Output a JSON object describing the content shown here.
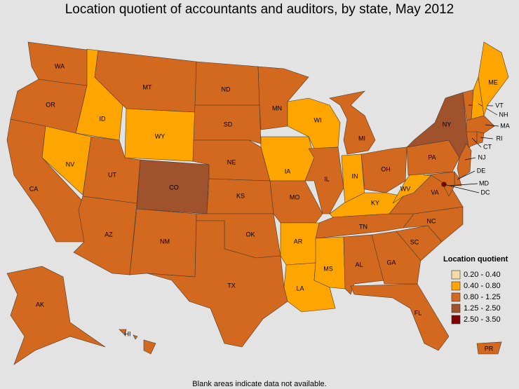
{
  "title": "Location quotient of accountants and auditors, by state, May 2012",
  "footnote": "Blank areas indicate data not available.",
  "legend": {
    "title": "Location quotient",
    "items": [
      {
        "label": "0.20 - 0.40",
        "color": "#f5d9a8"
      },
      {
        "label": "0.40 - 0.80",
        "color": "#ffa500"
      },
      {
        "label": "0.80 - 1.25",
        "color": "#d2691e"
      },
      {
        "label": "1.25 - 2.50",
        "color": "#a0522d"
      },
      {
        "label": "2.50 - 3.50",
        "color": "#800000"
      }
    ]
  },
  "states": [
    {
      "label": "WA",
      "color": "#d2691e"
    },
    {
      "label": "OR",
      "color": "#d2691e"
    },
    {
      "label": "CA",
      "color": "#d2691e"
    },
    {
      "label": "NV",
      "color": "#ffa500"
    },
    {
      "label": "ID",
      "color": "#ffa500"
    },
    {
      "label": "MT",
      "color": "#d2691e"
    },
    {
      "label": "WY",
      "color": "#ffa500"
    },
    {
      "label": "UT",
      "color": "#d2691e"
    },
    {
      "label": "AZ",
      "color": "#d2691e"
    },
    {
      "label": "CO",
      "color": "#a0522d"
    },
    {
      "label": "NM",
      "color": "#d2691e"
    },
    {
      "label": "ND",
      "color": "#d2691e"
    },
    {
      "label": "SD",
      "color": "#d2691e"
    },
    {
      "label": "NE",
      "color": "#d2691e"
    },
    {
      "label": "KS",
      "color": "#d2691e"
    },
    {
      "label": "OK",
      "color": "#d2691e"
    },
    {
      "label": "TX",
      "color": "#d2691e"
    },
    {
      "label": "MN",
      "color": "#d2691e"
    },
    {
      "label": "IA",
      "color": "#ffa500"
    },
    {
      "label": "MO",
      "color": "#d2691e"
    },
    {
      "label": "AR",
      "color": "#ffa500"
    },
    {
      "label": "LA",
      "color": "#ffa500"
    },
    {
      "label": "WI",
      "color": "#ffa500"
    },
    {
      "label": "IL",
      "color": "#d2691e"
    },
    {
      "label": "MI",
      "color": "#d2691e"
    },
    {
      "label": "IN",
      "color": "#ffa500"
    },
    {
      "label": "OH",
      "color": "#d2691e"
    },
    {
      "label": "KY",
      "color": "#ffa500"
    },
    {
      "label": "TN",
      "color": "#d2691e"
    },
    {
      "label": "MS",
      "color": "#ffa500"
    },
    {
      "label": "AL",
      "color": "#d2691e"
    },
    {
      "label": "GA",
      "color": "#d2691e"
    },
    {
      "label": "FL",
      "color": "#d2691e"
    },
    {
      "label": "SC",
      "color": "#d2691e"
    },
    {
      "label": "NC",
      "color": "#d2691e"
    },
    {
      "label": "VA",
      "color": "#d2691e"
    },
    {
      "label": "WV",
      "color": "#ffa500"
    },
    {
      "label": "PA",
      "color": "#d2691e"
    },
    {
      "label": "NY",
      "color": "#a0522d"
    },
    {
      "label": "VT",
      "color": "#d2691e"
    },
    {
      "label": "NH",
      "color": "#ffa500"
    },
    {
      "label": "ME",
      "color": "#ffa500"
    },
    {
      "label": "MA",
      "color": "#d2691e"
    },
    {
      "label": "CT",
      "color": "#d2691e"
    },
    {
      "label": "RI",
      "color": "#d2691e"
    },
    {
      "label": "NJ",
      "color": "#d2691e"
    },
    {
      "label": "DE",
      "color": "#d2691e"
    },
    {
      "label": "MD",
      "color": "#d2691e"
    },
    {
      "label": "DC",
      "color": "#800000"
    },
    {
      "label": "AK",
      "color": "#d2691e"
    },
    {
      "label": "HI",
      "color": "#d2691e"
    },
    {
      "label": "PR",
      "color": "#d2691e"
    }
  ]
}
